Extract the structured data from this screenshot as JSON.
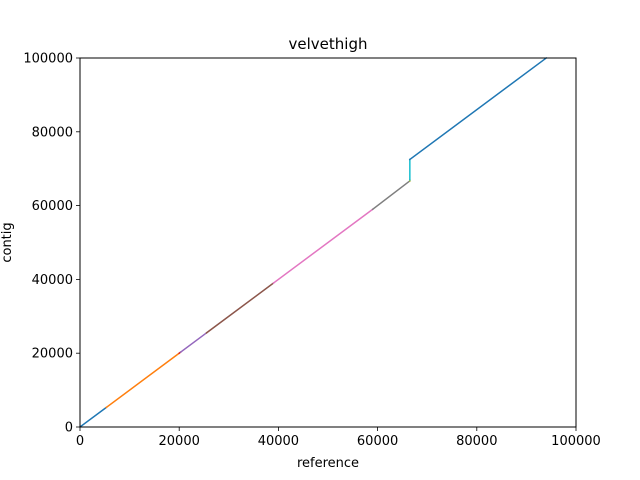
{
  "chart_data": {
    "type": "line",
    "title": "velvethigh",
    "xlabel": "reference",
    "ylabel": "contig",
    "xlim": [
      0,
      100000
    ],
    "ylim": [
      0,
      100000
    ],
    "xticks": [
      "0",
      "20000",
      "40000",
      "60000",
      "80000",
      "100000"
    ],
    "yticks": [
      "0",
      "20000",
      "40000",
      "60000",
      "80000",
      "100000"
    ],
    "grid": false,
    "legend": "none",
    "series": [
      {
        "color": "#1f77b4",
        "x": [
          0,
          5300
        ],
        "y": [
          0,
          5300
        ]
      },
      {
        "color": "#ff7f0e",
        "x": [
          5300,
          20000
        ],
        "y": [
          5300,
          20000
        ]
      },
      {
        "color": "#d62728",
        "x": [
          20000,
          20300
        ],
        "y": [
          20000,
          20300
        ]
      },
      {
        "color": "#9467bd",
        "x": [
          20300,
          25500
        ],
        "y": [
          20300,
          25500
        ]
      },
      {
        "color": "#8c564b",
        "x": [
          25500,
          39000
        ],
        "y": [
          25500,
          39000
        ]
      },
      {
        "color": "#e377c2",
        "x": [
          39000,
          59000
        ],
        "y": [
          39000,
          59000
        ]
      },
      {
        "color": "#7f7f7f",
        "x": [
          59000,
          66500
        ],
        "y": [
          59000,
          66700
        ]
      },
      {
        "color": "#bcbd22",
        "x": [
          66500,
          66500
        ],
        "y": [
          66700,
          67000
        ]
      },
      {
        "color": "#17becf",
        "x": [
          66500,
          66500
        ],
        "y": [
          67000,
          72500
        ]
      },
      {
        "color": "#1f77b4",
        "x": [
          66500,
          94000
        ],
        "y": [
          72500,
          100000
        ]
      }
    ]
  }
}
